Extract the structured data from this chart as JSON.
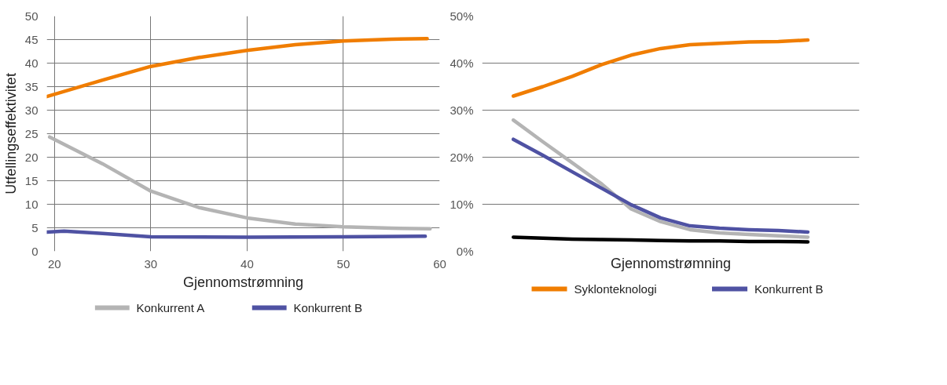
{
  "chart_data": [
    {
      "type": "line",
      "xlabel": "Gjennomstrømning",
      "ylabel": "Utfellingseffektivitet",
      "xlim": [
        19.2,
        60
      ],
      "ylim": [
        0,
        50
      ],
      "xticks": [
        20,
        30,
        40,
        50,
        60
      ],
      "yticks": [
        0,
        5,
        10,
        15,
        20,
        25,
        30,
        35,
        40,
        45,
        50
      ],
      "grid": true,
      "legend": "bottom",
      "line_style": "solid",
      "series": [
        {
          "color": "#f07d00",
          "x": [
            19.2,
            25,
            30,
            35,
            40,
            45,
            50,
            55,
            58.7
          ],
          "values": [
            32.9,
            36.4,
            39.3,
            41.2,
            42.7,
            43.9,
            44.7,
            45.1,
            45.2
          ]
        },
        {
          "name": "Konkurrent A",
          "color": "#b4b4b4",
          "x": [
            19.5,
            25,
            30,
            35,
            40,
            45,
            50,
            55,
            59
          ],
          "values": [
            24.3,
            18.6,
            12.8,
            9.3,
            7.1,
            5.8,
            5.2,
            4.9,
            4.8
          ]
        },
        {
          "name": "Konkurrent B",
          "color": "#4f52a3",
          "x": [
            19.2,
            21,
            25,
            30,
            40,
            50,
            58.5
          ],
          "values": [
            4.1,
            4.3,
            3.8,
            3.1,
            3.0,
            3.1,
            3.2
          ]
        }
      ]
    },
    {
      "type": "line",
      "xlabel": "Gjennomstrømning",
      "ylim": [
        0,
        50
      ],
      "yticks": [
        {
          "value": 0,
          "label": "0%"
        },
        {
          "value": 10,
          "label": "10%"
        },
        {
          "value": 20,
          "label": "20%"
        },
        {
          "value": 30,
          "label": "30%"
        },
        {
          "value": 40,
          "label": "40%"
        },
        {
          "value": 50,
          "label": "50%"
        }
      ],
      "grid": "y",
      "tick_labels": "y",
      "legend": "bottom",
      "line_style": "solid",
      "categories": [
        null,
        null,
        null,
        null,
        null,
        null,
        null,
        null,
        null,
        null,
        null
      ],
      "series": [
        {
          "name": "Syklonteknologi",
          "color": "#f07d00",
          "values": [
            33.0,
            35.0,
            37.2,
            39.7,
            41.7,
            43.1,
            43.9,
            44.2,
            44.5,
            44.6,
            44.9
          ]
        },
        {
          "color": "#b4b4b4",
          "values": [
            27.9,
            23.3,
            18.8,
            14.3,
            9.0,
            6.3,
            4.6,
            3.9,
            3.6,
            3.3,
            3.0
          ]
        },
        {
          "name": "Konkurrent B",
          "color": "#4f52a3",
          "values": [
            23.8,
            20.4,
            16.9,
            13.4,
            9.9,
            7.1,
            5.4,
            4.9,
            4.6,
            4.4,
            4.1
          ]
        },
        {
          "color": "#000000",
          "values": [
            3.0,
            2.8,
            2.6,
            2.5,
            2.4,
            2.3,
            2.2,
            2.2,
            2.1,
            2.1,
            2.0
          ]
        }
      ]
    }
  ]
}
